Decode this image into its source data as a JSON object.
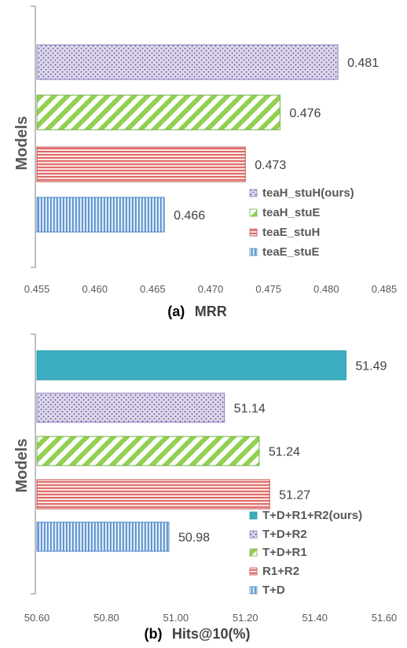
{
  "chart_data": [
    {
      "type": "bar",
      "orientation": "horizontal",
      "caption_prefix": "(a)",
      "caption": "MRR",
      "ylabel": "Models",
      "xlim": [
        0.455,
        0.485
      ],
      "xticks": [
        "0.455",
        "0.460",
        "0.465",
        "0.470",
        "0.475",
        "0.480",
        "0.485"
      ],
      "legend_position": "bottom-right",
      "bars": [
        {
          "name": "teaH_stuH(ours)",
          "value": 0.481,
          "label": "0.481",
          "pattern": "dots",
          "color": "#b4a7d6"
        },
        {
          "name": "teaH_stuE",
          "value": 0.476,
          "label": "0.476",
          "pattern": "diag",
          "color": "#92d050"
        },
        {
          "name": "teaE_stuH",
          "value": 0.473,
          "label": "0.473",
          "pattern": "hstripe",
          "color": "#e06666"
        },
        {
          "name": "teaE_stuE",
          "value": 0.466,
          "label": "0.466",
          "pattern": "vstripe",
          "color": "#6fa8dc"
        }
      ]
    },
    {
      "type": "bar",
      "orientation": "horizontal",
      "caption_prefix": "(b)",
      "caption": "Hits@10(%)",
      "ylabel": "Models",
      "xlim": [
        50.6,
        51.6
      ],
      "xticks": [
        "50.60",
        "50.80",
        "51.00",
        "51.20",
        "51.40",
        "51.60"
      ],
      "legend_position": "bottom-right",
      "bars": [
        {
          "name": "T+D+R1+R2(ours)",
          "value": 51.49,
          "label": "51.49",
          "pattern": "solid",
          "color": "#3aaec0"
        },
        {
          "name": "T+D+R2",
          "value": 51.14,
          "label": "51.14",
          "pattern": "dots",
          "color": "#b4a7d6"
        },
        {
          "name": "T+D+R1",
          "value": 51.24,
          "label": "51.24",
          "pattern": "diag",
          "color": "#92d050"
        },
        {
          "name": "R1+R2",
          "value": 51.27,
          "label": "51.27",
          "pattern": "hstripe",
          "color": "#e06666"
        },
        {
          "name": "T+D",
          "value": 50.98,
          "label": "50.98",
          "pattern": "vstripe",
          "color": "#6fa8dc"
        }
      ]
    }
  ]
}
